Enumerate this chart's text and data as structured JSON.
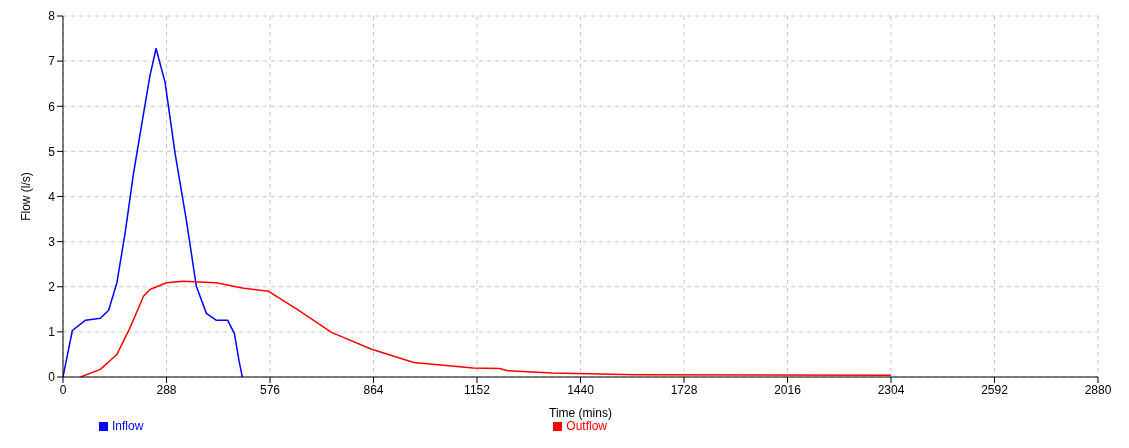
{
  "chart_data": {
    "type": "line",
    "xlabel": "Time (mins)",
    "ylabel": "Flow (l/s)",
    "xlim": [
      0,
      2880
    ],
    "xticks": [
      0,
      288,
      576,
      864,
      1152,
      1440,
      1728,
      2016,
      2304,
      2592,
      2880
    ],
    "ylim": [
      0,
      8
    ],
    "yticks": [
      0,
      1,
      2,
      3,
      4,
      5,
      6,
      7,
      8
    ],
    "grid": true,
    "legend": "bottom",
    "marker": "none",
    "line_style": "solid",
    "series": [
      {
        "name": "Inflow",
        "color": "#0000ff",
        "x": [
          0,
          26,
          63,
          104,
          127,
          150,
          173,
          196,
          219,
          242,
          259,
          284,
          312,
          344,
          371,
          399,
          426,
          458,
          477,
          490,
          499
        ],
        "values": [
          0,
          1.03,
          1.26,
          1.3,
          1.48,
          2.09,
          3.2,
          4.5,
          5.6,
          6.68,
          7.28,
          6.53,
          4.95,
          3.44,
          2.01,
          1.41,
          1.26,
          1.26,
          0.96,
          0.35,
          0
        ]
      },
      {
        "name": "Outflow",
        "color": "#ff0000",
        "x": [
          49,
          104,
          150,
          187,
          224,
          242,
          288,
          334,
          426,
          499,
          572,
          655,
          747,
          857,
          976,
          1141,
          1215,
          1237,
          1361,
          1593,
          2304
        ],
        "values": [
          0,
          0.17,
          0.5,
          1.1,
          1.79,
          1.94,
          2.09,
          2.12,
          2.09,
          1.97,
          1.9,
          1.48,
          0.99,
          0.62,
          0.32,
          0.2,
          0.19,
          0.14,
          0.09,
          0.05,
          0.04
        ]
      }
    ]
  }
}
